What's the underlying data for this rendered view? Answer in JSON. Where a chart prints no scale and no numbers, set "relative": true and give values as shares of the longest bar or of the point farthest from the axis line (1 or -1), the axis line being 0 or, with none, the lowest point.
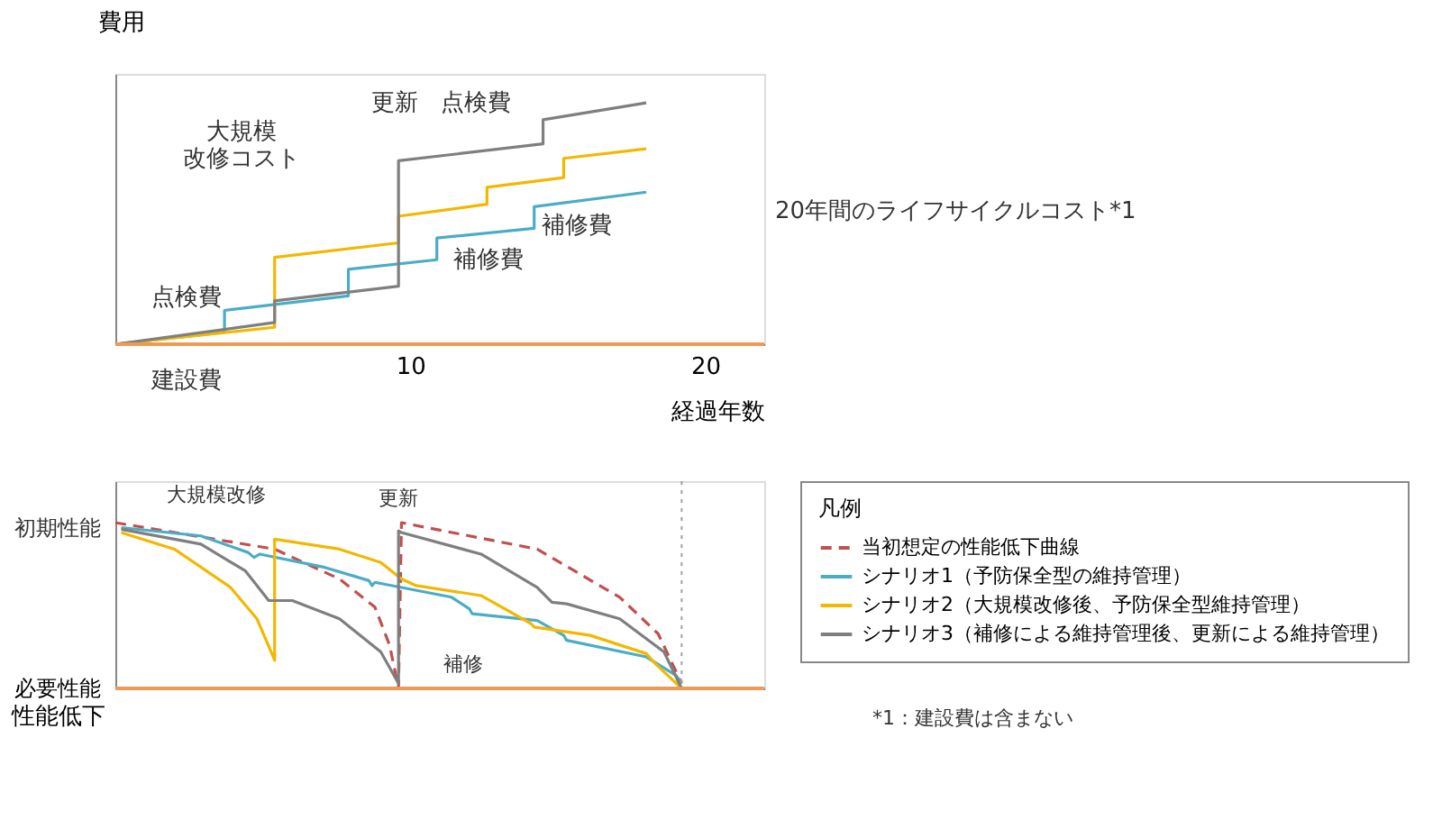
{
  "chart_data": [
    {
      "type": "line",
      "xlabel": "経過年数",
      "ylabel": "費用",
      "relative": true,
      "xlim": [
        0,
        22
      ],
      "xticks": [
        10,
        20
      ],
      "tick_labels": "x",
      "legend": false,
      "grid": false,
      "marker": "none",
      "series": [
        {
          "color": "#4bacc6",
          "x": [
            0,
            3.7,
            3.7,
            7.9,
            7.9,
            10.9,
            10.9,
            14.2,
            14.2,
            18
          ],
          "values": [
            0,
            0.05,
            0.14,
            0.2,
            0.31,
            0.35,
            0.44,
            0.48,
            0.57,
            0.63
          ]
        },
        {
          "color": "#f2b800",
          "x": [
            0,
            5.4,
            5.4,
            9.6,
            9.6,
            12.6,
            12.6,
            15.2,
            15.2,
            18
          ],
          "values": [
            0,
            0.07,
            0.36,
            0.42,
            0.53,
            0.58,
            0.65,
            0.69,
            0.77,
            0.81
          ]
        },
        {
          "color": "#7f7f7f",
          "x": [
            0,
            5.4,
            5.4,
            9.6,
            9.6,
            14.5,
            14.5,
            18
          ],
          "values": [
            0,
            0.09,
            0.18,
            0.24,
            0.76,
            0.83,
            0.93,
            1.0
          ]
        }
      ],
      "ref_lines": [
        {
          "axis": "y",
          "value": 0,
          "color": "#ed9b54",
          "line_style": "solid"
        }
      ],
      "annotations": [
        "点検費",
        "大規模改修コスト",
        "更新",
        "点検費",
        "補修費",
        "補修費",
        "20年間のライフサイクルコスト*1",
        "建設費"
      ]
    },
    {
      "type": "line",
      "ylabel": "性能低下",
      "relative": true,
      "xlim": [
        0,
        22
      ],
      "tick_labels": false,
      "legend": "right",
      "legend_title": "凡例",
      "grid": false,
      "marker": "none",
      "series": [
        {
          "name": "当初想定の性能低下曲線",
          "color": "#c0504d",
          "line_style": "dashed",
          "x": [
            0,
            5.4,
            7.6,
            8.8,
            9.3,
            9.6,
            9.7,
            14.3,
            17.1,
            18.4,
            19.2
          ],
          "values": [
            1.0,
            0.84,
            0.66,
            0.49,
            0.26,
            0,
            1.0,
            0.84,
            0.55,
            0.33,
            0.03
          ]
        },
        {
          "name": "シナリオ1（予防保全型の維持管理）",
          "color": "#4bacc6",
          "line_style": "solid",
          "x": [
            0.2,
            2.9,
            4.5,
            4.7,
            4.9,
            7.1,
            8.6,
            8.7,
            8.8,
            11.4,
            12.0,
            12.1,
            14.3,
            15.2,
            15.3,
            18.0,
            19.0,
            19.2
          ],
          "values": [
            0.97,
            0.92,
            0.82,
            0.79,
            0.81,
            0.73,
            0.65,
            0.62,
            0.64,
            0.55,
            0.48,
            0.45,
            0.41,
            0.32,
            0.29,
            0.19,
            0.08,
            0.03
          ]
        },
        {
          "name": "シナリオ2（大規模改修後、予防保全型維持管理）",
          "color": "#f2b800",
          "line_style": "solid",
          "x": [
            0.2,
            2.0,
            3.9,
            4.8,
            5.4,
            5.4,
            7.6,
            9.0,
            9.7,
            10.2,
            12.4,
            14.1,
            14.2,
            16.1,
            18.0,
            18.3,
            19.2
          ],
          "values": [
            0.94,
            0.84,
            0.61,
            0.42,
            0.17,
            0.9,
            0.84,
            0.76,
            0.66,
            0.62,
            0.56,
            0.39,
            0.37,
            0.32,
            0.21,
            0.15,
            0
          ]
        },
        {
          "name": "シナリオ3（補修による維持管理後、更新による維持管理）",
          "color": "#7f7f7f",
          "line_style": "solid",
          "x": [
            0.2,
            2.9,
            4.4,
            5.2,
            6.0,
            7.6,
            9.0,
            9.6,
            9.6,
            9.7,
            12.4,
            14.3,
            14.8,
            15.3,
            17.1,
            18.6,
            19.2
          ],
          "values": [
            0.96,
            0.87,
            0.71,
            0.53,
            0.53,
            0.42,
            0.22,
            0.03,
            0.95,
            0.94,
            0.81,
            0.61,
            0.52,
            0.51,
            0.42,
            0.22,
            0
          ]
        }
      ],
      "ref_lines": [
        {
          "axis": "y",
          "value": 0,
          "label": "必要性能",
          "color": "#ed9b54",
          "line_style": "solid"
        },
        {
          "axis": "x",
          "value": 19.2,
          "color": "#a0a0a0",
          "line_style": "dotted"
        }
      ],
      "annotations": [
        {
          "text": "初期性能",
          "x": 0,
          "y": 0.97
        },
        "大規模改修",
        "更新",
        "補修",
        "*1：建設費は含まない"
      ]
    }
  ]
}
